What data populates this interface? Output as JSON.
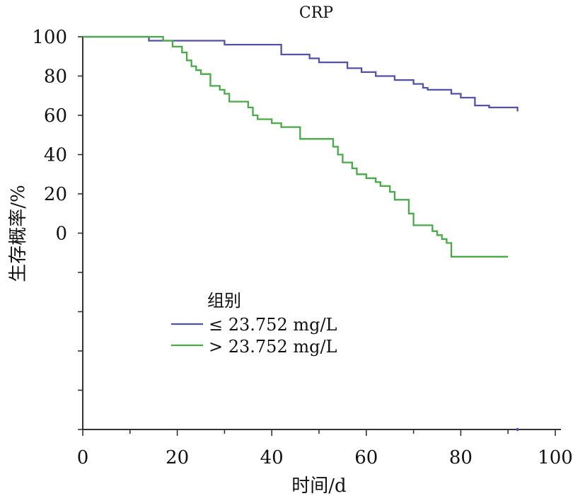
{
  "chart_data": {
    "type": "line",
    "title": "CRP",
    "xlabel": "时间/d",
    "ylabel": "生存概率/%",
    "xlim": [
      0,
      100
    ],
    "ylim": [
      -100,
      100
    ],
    "x_ticks": [
      0,
      20,
      40,
      60,
      80,
      100
    ],
    "y_tick_labels": [
      "100",
      "80",
      "60",
      "40",
      "20",
      "0"
    ],
    "y_tick_label_values": [
      100,
      80,
      60,
      40,
      20,
      0
    ],
    "y_unlabeled_ticks": [
      -20,
      -40,
      -60,
      -80,
      -100
    ],
    "legend": {
      "title": "组别",
      "position": "center-left"
    },
    "series": [
      {
        "name": "≤ 23.752 mg/L",
        "color": "#5252a8",
        "steps": [
          [
            0,
            100
          ],
          [
            14,
            98
          ],
          [
            30,
            96
          ],
          [
            42,
            91
          ],
          [
            48,
            89
          ],
          [
            50,
            87
          ],
          [
            56,
            84
          ],
          [
            59,
            82
          ],
          [
            62,
            80
          ],
          [
            66,
            78
          ],
          [
            70,
            76
          ],
          [
            72,
            74
          ],
          [
            73,
            73
          ],
          [
            78,
            71
          ],
          [
            80,
            69
          ],
          [
            83,
            65
          ],
          [
            86,
            64
          ],
          [
            92,
            62
          ]
        ]
      },
      {
        "name": "> 23.752 mg/L",
        "color": "#4aaa4a",
        "steps": [
          [
            0,
            100
          ],
          [
            17,
            98
          ],
          [
            19,
            95
          ],
          [
            21,
            92
          ],
          [
            22,
            88
          ],
          [
            23,
            85
          ],
          [
            24,
            83
          ],
          [
            25,
            81
          ],
          [
            27,
            75
          ],
          [
            29,
            73
          ],
          [
            30,
            71
          ],
          [
            31,
            67
          ],
          [
            35,
            64
          ],
          [
            36,
            60
          ],
          [
            37,
            58
          ],
          [
            40,
            56
          ],
          [
            42,
            54
          ],
          [
            46,
            48
          ],
          [
            53,
            44
          ],
          [
            54,
            40
          ],
          [
            55,
            36
          ],
          [
            57,
            33
          ],
          [
            58,
            30
          ],
          [
            60,
            28
          ],
          [
            62,
            26
          ],
          [
            63,
            24
          ],
          [
            65,
            21
          ],
          [
            66,
            17
          ],
          [
            69,
            10
          ],
          [
            70,
            4
          ],
          [
            74,
            1
          ],
          [
            75,
            -1
          ],
          [
            76,
            -3
          ],
          [
            77,
            -5
          ],
          [
            78,
            -12
          ],
          [
            90,
            -12
          ]
        ]
      }
    ]
  }
}
